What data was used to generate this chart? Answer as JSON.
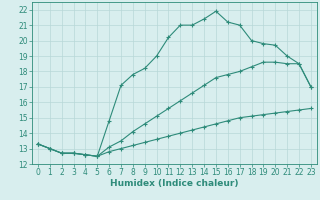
{
  "xlabel": "Humidex (Indice chaleur)",
  "line_color": "#2e8b7a",
  "bg_color": "#d8eeee",
  "grid_color": "#b8d8d8",
  "xlim": [
    -0.5,
    23.5
  ],
  "ylim": [
    12,
    22.5
  ],
  "xticks": [
    0,
    1,
    2,
    3,
    4,
    5,
    6,
    7,
    8,
    9,
    10,
    11,
    12,
    13,
    14,
    15,
    16,
    17,
    18,
    19,
    20,
    21,
    22,
    23
  ],
  "yticks": [
    12,
    13,
    14,
    15,
    16,
    17,
    18,
    19,
    20,
    21,
    22
  ],
  "line1_x": [
    0,
    1,
    2,
    3,
    4,
    5,
    6,
    7,
    8,
    9,
    10,
    11,
    12,
    13,
    14,
    15,
    16,
    17,
    18,
    19,
    20,
    21,
    22,
    23
  ],
  "line1_y": [
    13.3,
    13.0,
    12.7,
    12.7,
    12.6,
    12.5,
    14.8,
    17.1,
    17.8,
    18.2,
    19.0,
    20.2,
    21.0,
    21.0,
    21.4,
    21.9,
    21.2,
    21.0,
    20.0,
    19.8,
    19.7,
    19.0,
    18.5,
    17.0
  ],
  "line2_x": [
    0,
    1,
    2,
    3,
    4,
    5,
    6,
    7,
    8,
    9,
    10,
    11,
    12,
    13,
    14,
    15,
    16,
    17,
    18,
    19,
    20,
    21,
    22,
    23
  ],
  "line2_y": [
    13.3,
    13.0,
    12.7,
    12.7,
    12.6,
    12.5,
    13.1,
    13.5,
    14.1,
    14.6,
    15.1,
    15.6,
    16.1,
    16.6,
    17.1,
    17.6,
    17.8,
    18.0,
    18.3,
    18.6,
    18.6,
    18.5,
    18.5,
    17.0
  ],
  "line3_x": [
    0,
    1,
    2,
    3,
    4,
    5,
    6,
    7,
    8,
    9,
    10,
    11,
    12,
    13,
    14,
    15,
    16,
    17,
    18,
    19,
    20,
    21,
    22,
    23
  ],
  "line3_y": [
    13.3,
    13.0,
    12.7,
    12.7,
    12.6,
    12.5,
    12.8,
    13.0,
    13.2,
    13.4,
    13.6,
    13.8,
    14.0,
    14.2,
    14.4,
    14.6,
    14.8,
    15.0,
    15.1,
    15.2,
    15.3,
    15.4,
    15.5,
    15.6
  ],
  "marker": "+",
  "markersize": 3,
  "markeredgewidth": 0.8,
  "linewidth": 0.8,
  "font_size": 5.5,
  "label_fontsize": 6.5
}
